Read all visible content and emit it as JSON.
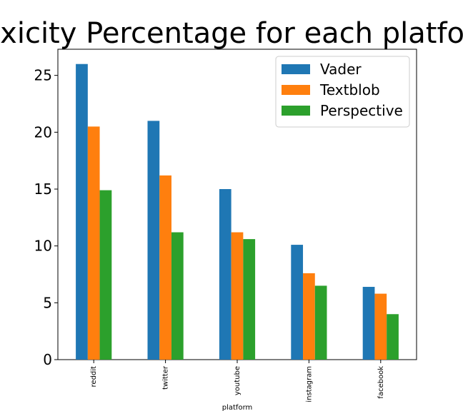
{
  "chart_data": {
    "type": "bar",
    "title": "Toxicity Percentage for each platform",
    "xlabel": "platform",
    "ylabel": "",
    "categories": [
      "reddit",
      "twitter",
      "youtube",
      "instagram",
      "facebook"
    ],
    "series": [
      {
        "name": "Vader",
        "color": "#1f77b4",
        "values": [
          26.0,
          21.0,
          15.0,
          10.1,
          6.4
        ]
      },
      {
        "name": "Textblob",
        "color": "#ff7f0e",
        "values": [
          20.5,
          16.2,
          11.2,
          7.6,
          5.8
        ]
      },
      {
        "name": "Perspective",
        "color": "#2ca02c",
        "values": [
          14.9,
          11.2,
          10.6,
          6.5,
          4.0
        ]
      }
    ],
    "ylim": [
      0,
      27.3
    ],
    "yticks": [
      0,
      5,
      10,
      15,
      20,
      25
    ],
    "grid": false,
    "legend_position": "top-right"
  }
}
